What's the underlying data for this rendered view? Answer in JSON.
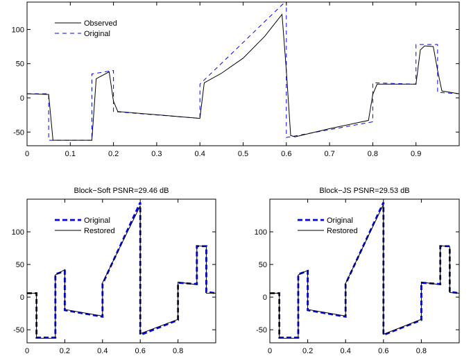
{
  "chart_data": [
    {
      "id": "top",
      "type": "line",
      "title": "",
      "xlabel": "",
      "ylabel": "",
      "xlim": [
        0,
        1
      ],
      "ylim": [
        -70,
        140
      ],
      "xticks": [
        0,
        0.1,
        0.2,
        0.3,
        0.4,
        0.5,
        0.6,
        0.7,
        0.8,
        0.9
      ],
      "xtick_labels": [
        "0",
        "0.1",
        "0.2",
        "0.3",
        "0.4",
        "0.5",
        "0.6",
        "0.7",
        "0.8",
        "0.9"
      ],
      "yticks": [
        -50,
        0,
        50,
        100
      ],
      "ytick_labels": [
        "-50",
        "0",
        "50",
        "100"
      ],
      "grid": false,
      "legend": {
        "placement": "top-left",
        "entries": [
          {
            "label": "Observed",
            "color": "#000000",
            "style": "solid"
          },
          {
            "label": "Original",
            "color": "#0000ff",
            "style": "dashed"
          }
        ]
      },
      "series": [
        {
          "name": "Original",
          "color": "#0000ff",
          "style": "dashed",
          "x": [
            0,
            0.05,
            0.05,
            0.15,
            0.15,
            0.2,
            0.2,
            0.4,
            0.4,
            0.6,
            0.6,
            0.8,
            0.8,
            0.9,
            0.9,
            0.95,
            0.95,
            1
          ],
          "y": [
            6,
            6,
            -62,
            -62,
            35,
            40,
            -20,
            -30,
            20,
            142,
            -58,
            -35,
            22,
            20,
            78,
            78,
            8,
            6
          ]
        },
        {
          "name": "Observed",
          "color": "#000000",
          "style": "solid",
          "x": [
            0,
            0.05,
            0.06,
            0.15,
            0.16,
            0.19,
            0.2,
            0.21,
            0.4,
            0.41,
            0.45,
            0.5,
            0.55,
            0.59,
            0.6,
            0.61,
            0.62,
            0.7,
            0.79,
            0.8,
            0.81,
            0.9,
            0.91,
            0.92,
            0.94,
            0.95,
            0.96,
            1
          ],
          "y": [
            6,
            5,
            -62,
            -62,
            28,
            38,
            -5,
            -20,
            -30,
            22,
            36,
            58,
            90,
            122,
            40,
            -55,
            -57,
            -45,
            -33,
            5,
            20,
            20,
            70,
            76,
            75,
            40,
            10,
            6
          ]
        }
      ]
    },
    {
      "id": "bottom-left",
      "type": "line",
      "title": "Block−Soft PSNR=29.46 dB",
      "xlabel": "",
      "ylabel": "",
      "xlim": [
        0,
        1
      ],
      "ylim": [
        -70,
        150
      ],
      "xticks": [
        0,
        0.2,
        0.4,
        0.6,
        0.8
      ],
      "xtick_labels": [
        "0",
        "0.2",
        "0.4",
        "0.6",
        "0.8"
      ],
      "yticks": [
        -50,
        0,
        50,
        100
      ],
      "ytick_labels": [
        "-50",
        "0",
        "50",
        "100"
      ],
      "grid": false,
      "legend": {
        "placement": "top-left",
        "entries": [
          {
            "label": "Original",
            "color": "#0000ff",
            "style": "dashed"
          },
          {
            "label": "Restored",
            "color": "#000000",
            "style": "solid"
          }
        ]
      },
      "series": [
        {
          "name": "Original",
          "color": "#0000ff",
          "style": "dashed",
          "x": [
            0,
            0.05,
            0.05,
            0.15,
            0.15,
            0.2,
            0.2,
            0.4,
            0.4,
            0.6,
            0.6,
            0.8,
            0.8,
            0.9,
            0.9,
            0.95,
            0.95,
            1
          ],
          "y": [
            6,
            6,
            -62,
            -62,
            35,
            40,
            -20,
            -30,
            20,
            145,
            -58,
            -35,
            22,
            20,
            78,
            78,
            8,
            6
          ]
        },
        {
          "name": "Restored",
          "color": "#000000",
          "style": "solid",
          "x": [
            0,
            0.05,
            0.05,
            0.15,
            0.15,
            0.2,
            0.2,
            0.4,
            0.4,
            0.6,
            0.6,
            0.8,
            0.8,
            0.9,
            0.9,
            0.95,
            0.95,
            1
          ],
          "y": [
            6,
            6,
            -63,
            -63,
            34,
            42,
            -19,
            -29,
            22,
            140,
            -56,
            -34,
            23,
            19,
            79,
            77,
            6,
            6
          ]
        }
      ]
    },
    {
      "id": "bottom-right",
      "type": "line",
      "title": "Block−JS PSNR=29.53 dB",
      "xlabel": "",
      "ylabel": "",
      "xlim": [
        0,
        1
      ],
      "ylim": [
        -70,
        150
      ],
      "xticks": [
        0,
        0.2,
        0.4,
        0.6,
        0.8
      ],
      "xtick_labels": [
        "0",
        "0.2",
        "0.4",
        "0.6",
        "0.8"
      ],
      "yticks": [
        -50,
        0,
        50,
        100
      ],
      "ytick_labels": [
        "-50",
        "0",
        "50",
        "100"
      ],
      "grid": false,
      "legend": {
        "placement": "top-left",
        "entries": [
          {
            "label": "Original",
            "color": "#0000ff",
            "style": "dashed"
          },
          {
            "label": "Restored",
            "color": "#000000",
            "style": "solid"
          }
        ]
      },
      "series": [
        {
          "name": "Original",
          "color": "#0000ff",
          "style": "dashed",
          "x": [
            0,
            0.05,
            0.05,
            0.15,
            0.15,
            0.2,
            0.2,
            0.4,
            0.4,
            0.6,
            0.6,
            0.8,
            0.8,
            0.9,
            0.9,
            0.95,
            0.95,
            1
          ],
          "y": [
            6,
            6,
            -62,
            -62,
            35,
            40,
            -20,
            -30,
            20,
            145,
            -58,
            -35,
            22,
            20,
            78,
            78,
            8,
            6
          ]
        },
        {
          "name": "Restored",
          "color": "#000000",
          "style": "solid",
          "x": [
            0,
            0.05,
            0.05,
            0.15,
            0.15,
            0.2,
            0.2,
            0.4,
            0.4,
            0.6,
            0.6,
            0.8,
            0.8,
            0.9,
            0.9,
            0.95,
            0.95,
            1
          ],
          "y": [
            6,
            6,
            -63,
            -63,
            34,
            41,
            -19,
            -29,
            21,
            142,
            -57,
            -34,
            23,
            19,
            79,
            77,
            7,
            6
          ]
        }
      ]
    }
  ]
}
